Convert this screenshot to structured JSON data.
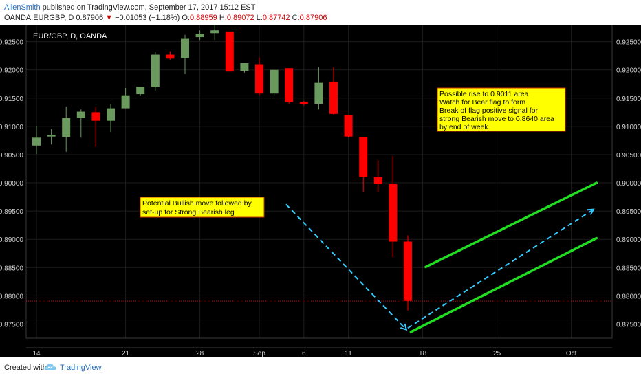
{
  "header": {
    "author": "AllenSmith",
    "published": "published on TradingView.com, September 17, 2017 15:12 EST",
    "symbol": "OANDA:EURGBP, D",
    "price": "0.87906",
    "change_arrow": "▼",
    "change": "−0.01053 (−1.18%)",
    "o_label": "O:",
    "o": "0.88959",
    "h_label": "H:",
    "h": "0.89072",
    "l_label": "L:",
    "l": "0.87742",
    "c_label": "C:",
    "c": "0.87906"
  },
  "footer": {
    "created": "Created with",
    "brand": "TradingView",
    "logo_icon": "tradingview-cloud-icon"
  },
  "colors": {
    "up": "#6a9a5e",
    "down": "#ff0000",
    "background": "#000000",
    "trendline": "#22dd22",
    "arrow": "#33ccff",
    "note_fill": "#ffff00",
    "note_border": "#cc3300",
    "price_line": "#cc0000"
  },
  "chart_data": {
    "type": "candlestick",
    "title": "EUR/GBP, D, OANDA",
    "ylim": [
      0.8725,
      0.928
    ],
    "y_ticks": [
      "0.92500",
      "0.92000",
      "0.91500",
      "0.91000",
      "0.90500",
      "0.90000",
      "0.89500",
      "0.89000",
      "0.88500",
      "0.88000",
      "0.87500"
    ],
    "x_ticks": [
      {
        "label": "14",
        "index": 0
      },
      {
        "label": "21",
        "index": 6
      },
      {
        "label": "28",
        "index": 11
      },
      {
        "label": "Sep",
        "index": 15
      },
      {
        "label": "6",
        "index": 18
      },
      {
        "label": "11",
        "index": 21
      },
      {
        "label": "18",
        "index": 26
      },
      {
        "label": "25",
        "index": 31
      },
      {
        "label": "Oct",
        "index": 36
      }
    ],
    "candles": [
      {
        "o": 0.9066,
        "h": 0.91,
        "l": 0.9051,
        "c": 0.908
      },
      {
        "o": 0.9082,
        "h": 0.9095,
        "l": 0.9068,
        "c": 0.9085
      },
      {
        "o": 0.9081,
        "h": 0.9135,
        "l": 0.9055,
        "c": 0.9115
      },
      {
        "o": 0.9115,
        "h": 0.913,
        "l": 0.908,
        "c": 0.9126
      },
      {
        "o": 0.9125,
        "h": 0.9135,
        "l": 0.9063,
        "c": 0.911
      },
      {
        "o": 0.911,
        "h": 0.914,
        "l": 0.909,
        "c": 0.9132
      },
      {
        "o": 0.9132,
        "h": 0.9168,
        "l": 0.9132,
        "c": 0.9155
      },
      {
        "o": 0.9157,
        "h": 0.917,
        "l": 0.9155,
        "c": 0.917
      },
      {
        "o": 0.917,
        "h": 0.9232,
        "l": 0.9163,
        "c": 0.9227
      },
      {
        "o": 0.9227,
        "h": 0.9233,
        "l": 0.9218,
        "c": 0.922
      },
      {
        "o": 0.9221,
        "h": 0.9262,
        "l": 0.9193,
        "c": 0.9255
      },
      {
        "o": 0.9258,
        "h": 0.927,
        "l": 0.9253,
        "c": 0.9264
      },
      {
        "o": 0.9265,
        "h": 0.928,
        "l": 0.9253,
        "c": 0.927
      },
      {
        "o": 0.9268,
        "h": 0.9268,
        "l": 0.9197,
        "c": 0.9197
      },
      {
        "o": 0.9198,
        "h": 0.9212,
        "l": 0.9195,
        "c": 0.9212
      },
      {
        "o": 0.921,
        "h": 0.9222,
        "l": 0.9155,
        "c": 0.9158
      },
      {
        "o": 0.9158,
        "h": 0.92,
        "l": 0.9155,
        "c": 0.92
      },
      {
        "o": 0.9203,
        "h": 0.9203,
        "l": 0.914,
        "c": 0.9143
      },
      {
        "o": 0.9143,
        "h": 0.9145,
        "l": 0.9137,
        "c": 0.914
      },
      {
        "o": 0.914,
        "h": 0.9205,
        "l": 0.913,
        "c": 0.9177
      },
      {
        "o": 0.9178,
        "h": 0.9205,
        "l": 0.912,
        "c": 0.9122
      },
      {
        "o": 0.912,
        "h": 0.912,
        "l": 0.908,
        "c": 0.9082
      },
      {
        "o": 0.9081,
        "h": 0.9081,
        "l": 0.8983,
        "c": 0.901
      },
      {
        "o": 0.901,
        "h": 0.904,
        "l": 0.8983,
        "c": 0.8998
      },
      {
        "o": 0.8998,
        "h": 0.9048,
        "l": 0.8868,
        "c": 0.8896
      },
      {
        "o": 0.8896,
        "h": 0.8907,
        "l": 0.8774,
        "c": 0.8791
      }
    ],
    "last_price_line": 0.87906,
    "annotations": [
      {
        "name": "bullish-note",
        "lines": [
          "Potential Bullish move followed by",
          "set-up for Strong Bearish leg"
        ]
      },
      {
        "name": "bear-flag-note",
        "lines": [
          "Possible rise to 0.9011 area",
          "Watch for Bear flag to form",
          "Break of flag positive signal for",
          "strong Bearish move to 0.8640 area",
          "by end of week."
        ]
      }
    ],
    "trendlines": [
      {
        "name": "flag-lower-line",
        "from": {
          "index": 25.2,
          "price": 0.8736
        },
        "to": {
          "index": 37.7,
          "price": 0.8902
        }
      },
      {
        "name": "flag-upper-line",
        "from": {
          "index": 26.2,
          "price": 0.8851
        },
        "to": {
          "index": 37.7,
          "price": 0.9
        }
      }
    ],
    "projection_arrows": [
      {
        "name": "down-arrow",
        "from": {
          "index": 16.8,
          "price": 0.8962
        },
        "to": {
          "index": 24.9,
          "price": 0.874
        }
      },
      {
        "name": "up-arrow",
        "from": {
          "index": 25.0,
          "price": 0.8743
        },
        "to": {
          "index": 37.5,
          "price": 0.8953
        }
      }
    ]
  }
}
